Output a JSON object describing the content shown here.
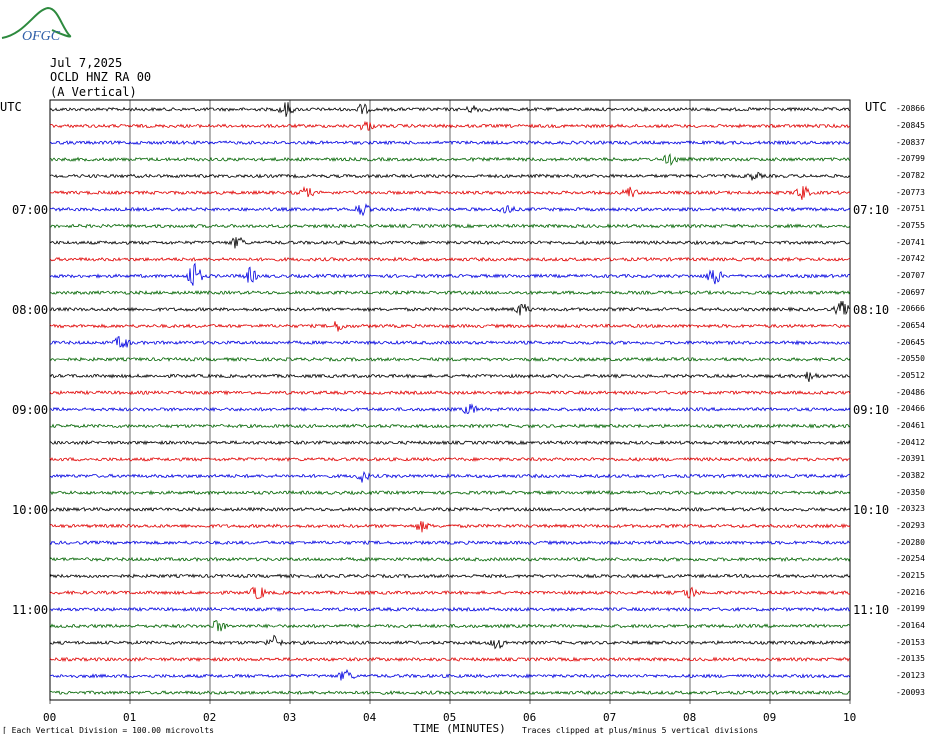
{
  "logo": {
    "text": "OFGC",
    "color": "#2d8a3e",
    "text_color": "#2f5fa8"
  },
  "header": {
    "date": "Jul 7,2025",
    "station": "OCLD HNZ RA 00",
    "component": "(A Vertical)"
  },
  "left_tz": "UTC",
  "right_tz": "UTC",
  "left_times": [
    "07:00",
    "08:00",
    "09:00",
    "10:00",
    "11:00"
  ],
  "right_times": [
    "07:10",
    "08:10",
    "09:10",
    "10:10",
    "11:10"
  ],
  "footer": {
    "scale": "Each Vertical Division =  100.00 microvolts",
    "xlabel": "TIME (MINUTES)",
    "clip": "Traces clipped at plus/minus 5 vertical divisions"
  },
  "colors": {
    "trace_cycle": [
      "#000000",
      "#e00000",
      "#0000e0",
      "#006400"
    ],
    "grid": "#000000"
  },
  "chart_data": {
    "type": "line",
    "title": "",
    "xlabel": "TIME (MINUTES)",
    "ylabel": "",
    "xlim": [
      0,
      10
    ],
    "x_ticks": [
      "00",
      "01",
      "02",
      "03",
      "04",
      "05",
      "06",
      "07",
      "08",
      "09",
      "10"
    ],
    "grid": true,
    "row_interval_minutes": 10,
    "traces": [
      {
        "offset": "-20866",
        "color": "black"
      },
      {
        "offset": "-20845",
        "color": "red"
      },
      {
        "offset": "-20837",
        "color": "blue"
      },
      {
        "offset": "-20799",
        "color": "green"
      },
      {
        "offset": "-20782",
        "color": "black"
      },
      {
        "offset": "-20773",
        "color": "red"
      },
      {
        "offset": "-20751",
        "color": "blue"
      },
      {
        "offset": "-20755",
        "color": "green"
      },
      {
        "offset": "-20741",
        "color": "black"
      },
      {
        "offset": "-20742",
        "color": "red"
      },
      {
        "offset": "-20707",
        "color": "blue"
      },
      {
        "offset": "-20697",
        "color": "green"
      },
      {
        "offset": "-20666",
        "color": "black"
      },
      {
        "offset": "-20654",
        "color": "red"
      },
      {
        "offset": "-20645",
        "color": "blue"
      },
      {
        "offset": "-20550",
        "color": "green"
      },
      {
        "offset": "-20512",
        "color": "black"
      },
      {
        "offset": "-20486",
        "color": "red"
      },
      {
        "offset": "-20466",
        "color": "blue"
      },
      {
        "offset": "-20461",
        "color": "green"
      },
      {
        "offset": "-20412",
        "color": "black"
      },
      {
        "offset": "-20391",
        "color": "red"
      },
      {
        "offset": "-20382",
        "color": "blue"
      },
      {
        "offset": "-20350",
        "color": "green"
      },
      {
        "offset": "-20323",
        "color": "black"
      },
      {
        "offset": "-20293",
        "color": "red"
      },
      {
        "offset": "-20280",
        "color": "blue"
      },
      {
        "offset": "-20254",
        "color": "green"
      },
      {
        "offset": "-20215",
        "color": "black"
      },
      {
        "offset": "-20216",
        "color": "red"
      },
      {
        "offset": "-20199",
        "color": "blue"
      },
      {
        "offset": "-20164",
        "color": "green"
      },
      {
        "offset": "-20153",
        "color": "black"
      },
      {
        "offset": "-20135",
        "color": "red"
      },
      {
        "offset": "-20123",
        "color": "blue"
      },
      {
        "offset": "-20093",
        "color": "green"
      }
    ],
    "events": [
      {
        "trace": 0,
        "minute": 2.95,
        "amp": 3.0
      },
      {
        "trace": 0,
        "minute": 3.9,
        "amp": 2.0
      },
      {
        "trace": 0,
        "minute": 5.3,
        "amp": 1.5
      },
      {
        "trace": 1,
        "minute": 3.95,
        "amp": 2.0
      },
      {
        "trace": 3,
        "minute": 7.75,
        "amp": 2.0
      },
      {
        "trace": 4,
        "minute": 8.8,
        "amp": 1.5
      },
      {
        "trace": 5,
        "minute": 3.2,
        "amp": 2.0
      },
      {
        "trace": 5,
        "minute": 7.25,
        "amp": 2.0
      },
      {
        "trace": 5,
        "minute": 9.4,
        "amp": 3.0
      },
      {
        "trace": 6,
        "minute": 3.9,
        "amp": 2.5
      },
      {
        "trace": 6,
        "minute": 5.7,
        "amp": 2.0
      },
      {
        "trace": 8,
        "minute": 2.35,
        "amp": 2.5
      },
      {
        "trace": 10,
        "minute": 1.8,
        "amp": 6.0
      },
      {
        "trace": 10,
        "minute": 2.5,
        "amp": 3.0
      },
      {
        "trace": 10,
        "minute": 8.3,
        "amp": 4.0
      },
      {
        "trace": 12,
        "minute": 5.9,
        "amp": 2.5
      },
      {
        "trace": 12,
        "minute": 9.9,
        "amp": 3.0
      },
      {
        "trace": 13,
        "minute": 3.6,
        "amp": 2.0
      },
      {
        "trace": 14,
        "minute": 0.9,
        "amp": 3.0
      },
      {
        "trace": 16,
        "minute": 9.5,
        "amp": 2.0
      },
      {
        "trace": 18,
        "minute": 5.25,
        "amp": 2.0
      },
      {
        "trace": 22,
        "minute": 3.9,
        "amp": 2.0
      },
      {
        "trace": 25,
        "minute": 4.65,
        "amp": 2.0
      },
      {
        "trace": 29,
        "minute": 2.6,
        "amp": 3.0
      },
      {
        "trace": 29,
        "minute": 8.0,
        "amp": 2.5
      },
      {
        "trace": 31,
        "minute": 2.1,
        "amp": 2.5
      },
      {
        "trace": 32,
        "minute": 2.8,
        "amp": 2.5
      },
      {
        "trace": 32,
        "minute": 5.6,
        "amp": 2.5
      },
      {
        "trace": 34,
        "minute": 3.7,
        "amp": 2.5
      }
    ]
  }
}
